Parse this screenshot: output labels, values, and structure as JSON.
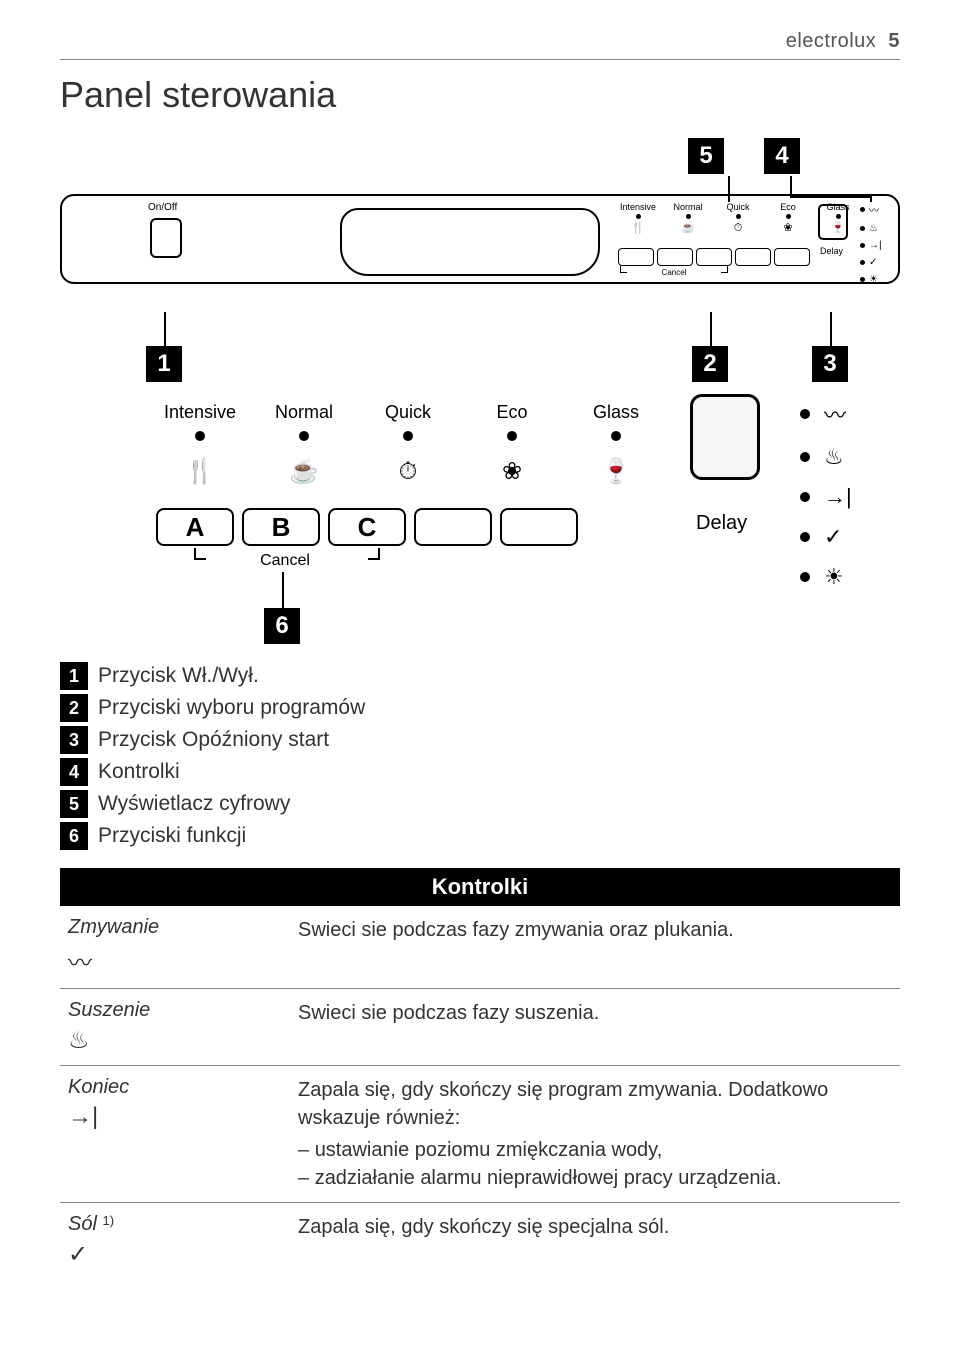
{
  "header": {
    "brand": "electrolux",
    "page": "5"
  },
  "title": "Panel sterowania",
  "panel": {
    "onoff": "On/Off",
    "programs": [
      "Intensive",
      "Normal",
      "Quick",
      "Eco",
      "Glass"
    ],
    "icons": [
      "🍴",
      "☕",
      "⏱",
      "❀",
      "🍷"
    ],
    "delay": "Delay",
    "cancel": "Cancel",
    "func_letters": [
      "A",
      "B",
      "C"
    ]
  },
  "indicators": {
    "glyphs": [
      "〰",
      "♨",
      "→|",
      "✓",
      "☀"
    ]
  },
  "callouts": {
    "top": [
      "5",
      "4"
    ],
    "mid": [
      "1",
      "2",
      "3"
    ],
    "six": "6"
  },
  "legend": [
    {
      "n": "1",
      "t": "Przycisk Wł./Wył."
    },
    {
      "n": "2",
      "t": "Przyciski wyboru programów"
    },
    {
      "n": "3",
      "t": "Przycisk Opóźniony start"
    },
    {
      "n": "4",
      "t": "Kontrolki"
    },
    {
      "n": "5",
      "t": "Wyświetlacz cyfrowy"
    },
    {
      "n": "6",
      "t": "Przyciski funkcji"
    }
  ],
  "kontrolki": {
    "title": "Kontrolki",
    "rows": [
      {
        "name": "Zmywanie",
        "icon": "〰",
        "desc": "Swieci sie podczas fazy zmywania oraz plukania."
      },
      {
        "name": "Suszenie",
        "icon": "♨",
        "desc": "Swieci sie podczas fazy suszenia."
      },
      {
        "name": "Koniec",
        "icon": "→|",
        "desc": "Zapala się, gdy skończy się program zmywania. Dodatkowo wskazuje również:",
        "bullets": [
          "ustawianie poziomu zmiękczania wody,",
          "zadziałanie alarmu nieprawidłowej pracy urządzenia."
        ]
      },
      {
        "name": "Sól",
        "sup": "1)",
        "icon": "✓",
        "desc": "Zapala się, gdy skończy się specjalna sól."
      }
    ]
  }
}
